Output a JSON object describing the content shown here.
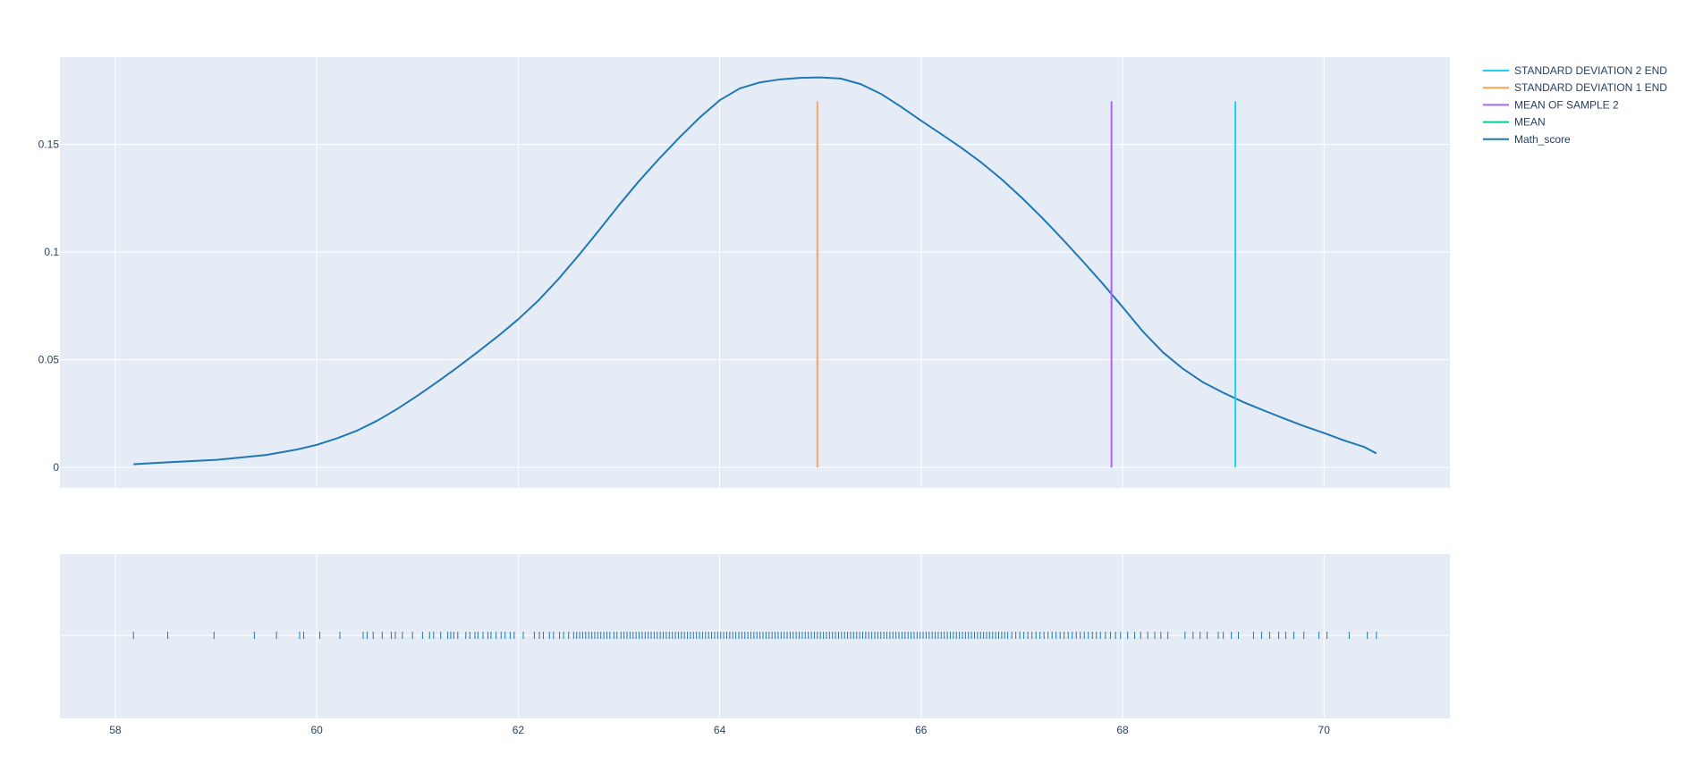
{
  "chart_data": {
    "type": "line",
    "title": "",
    "xlabel": "",
    "ylabel": "",
    "grid": true,
    "legend_position": "top-right",
    "colors": {
      "plot_background": "#e5ecf6",
      "grid": "#ffffff",
      "text": "#2a3f5f"
    },
    "x_axis": {
      "range": [
        57.45,
        71.25
      ],
      "ticks": [
        58,
        60,
        62,
        64,
        66,
        68,
        70
      ],
      "tick_labels": [
        "58",
        "60",
        "62",
        "64",
        "66",
        "68",
        "70"
      ]
    },
    "y_axis": {
      "range": [
        -0.0095,
        0.1905
      ],
      "ticks": [
        0,
        0.05,
        0.1,
        0.15
      ],
      "tick_labels": [
        "0",
        "0.05",
        "0.1",
        "0.15"
      ]
    },
    "legend": [
      {
        "name": "STANDARD DEVIATION 2 END",
        "color": "#19d3f3"
      },
      {
        "name": "STANDARD DEVIATION 1 END",
        "color": "#ffa15a"
      },
      {
        "name": "MEAN OF SAMPLE 2",
        "color": "#ab63fa"
      },
      {
        "name": "MEAN",
        "color": "#00cc96"
      },
      {
        "name": "Math_score",
        "color": "#1f77b4"
      }
    ],
    "series": [
      {
        "name": "Math_score",
        "type": "density",
        "color": "#1f77b4",
        "x": [
          58.18,
          58.5,
          59.0,
          59.5,
          59.8,
          60.0,
          60.2,
          60.4,
          60.6,
          60.8,
          61.0,
          61.2,
          61.4,
          61.6,
          61.8,
          62.0,
          62.2,
          62.4,
          62.6,
          62.8,
          63.0,
          63.2,
          63.4,
          63.6,
          63.8,
          64.0,
          64.2,
          64.4,
          64.6,
          64.8,
          65.0,
          65.2,
          65.4,
          65.6,
          65.8,
          66.0,
          66.2,
          66.4,
          66.6,
          66.8,
          67.0,
          67.2,
          67.4,
          67.6,
          67.8,
          68.0,
          68.2,
          68.4,
          68.6,
          68.8,
          69.0,
          69.2,
          69.4,
          69.6,
          69.8,
          70.0,
          70.2,
          70.4,
          70.52
        ],
        "y": [
          0.0015,
          0.0023,
          0.0035,
          0.0058,
          0.0083,
          0.0105,
          0.0135,
          0.0171,
          0.0217,
          0.0272,
          0.0333,
          0.0398,
          0.0466,
          0.0537,
          0.061,
          0.0688,
          0.0775,
          0.0875,
          0.0985,
          0.11,
          0.1218,
          0.133,
          0.1434,
          0.1532,
          0.1624,
          0.1705,
          0.176,
          0.1788,
          0.1802,
          0.1809,
          0.1811,
          0.1806,
          0.178,
          0.1735,
          0.1675,
          0.161,
          0.1548,
          0.1484,
          0.1415,
          0.1338,
          0.1252,
          0.116,
          0.1062,
          0.096,
          0.0855,
          0.0745,
          0.0632,
          0.0535,
          0.0458,
          0.0395,
          0.0347,
          0.0303,
          0.0265,
          0.0228,
          0.0192,
          0.016,
          0.0125,
          0.0095,
          0.0065
        ]
      },
      {
        "name": "STANDARD DEVIATION 1 END",
        "type": "vline",
        "color": "#ffa15a",
        "x": 64.97,
        "y": [
          0,
          0.17
        ]
      },
      {
        "name": "MEAN OF SAMPLE 2",
        "type": "vline",
        "color": "#ab63fa",
        "x": 67.89,
        "y": [
          0,
          0.17
        ]
      },
      {
        "name": "STANDARD DEVIATION 2 END",
        "type": "vline",
        "color": "#19d3f3",
        "x": 69.12,
        "y": [
          0,
          0.17
        ]
      }
    ],
    "rug": {
      "name": "Math_score",
      "color": "#1f77b4",
      "x": [
        58.18,
        58.52,
        58.98,
        59.38,
        59.6,
        59.83,
        59.87,
        60.03,
        60.23,
        60.46,
        60.5,
        60.56,
        60.65,
        60.74,
        60.78,
        60.85,
        60.95,
        61.05,
        61.12,
        61.16,
        61.23,
        61.3,
        61.33,
        61.36,
        61.4,
        61.48,
        61.52,
        61.57,
        61.6,
        61.65,
        61.7,
        61.73,
        61.78,
        61.83,
        61.87,
        61.92,
        61.96,
        62.05,
        62.16,
        62.21,
        62.25,
        62.31,
        62.35,
        62.41,
        62.45,
        62.5,
        62.55,
        62.58,
        62.61,
        62.64,
        62.67,
        62.7,
        62.73,
        62.76,
        62.79,
        62.82,
        62.85,
        62.88,
        62.91,
        62.95,
        62.98,
        63.02,
        63.05,
        63.08,
        63.11,
        63.14,
        63.17,
        63.2,
        63.23,
        63.26,
        63.29,
        63.32,
        63.35,
        63.38,
        63.41,
        63.44,
        63.47,
        63.5,
        63.53,
        63.56,
        63.59,
        63.62,
        63.65,
        63.68,
        63.71,
        63.74,
        63.77,
        63.8,
        63.83,
        63.86,
        63.89,
        63.92,
        63.95,
        63.98,
        64.01,
        64.04,
        64.07,
        64.1,
        64.13,
        64.16,
        64.19,
        64.22,
        64.25,
        64.28,
        64.31,
        64.34,
        64.37,
        64.4,
        64.43,
        64.46,
        64.49,
        64.52,
        64.55,
        64.58,
        64.61,
        64.64,
        64.67,
        64.7,
        64.73,
        64.76,
        64.79,
        64.82,
        64.85,
        64.88,
        64.91,
        64.94,
        64.97,
        65.0,
        65.03,
        65.06,
        65.09,
        65.12,
        65.15,
        65.18,
        65.21,
        65.24,
        65.27,
        65.3,
        65.33,
        65.36,
        65.39,
        65.42,
        65.45,
        65.48,
        65.51,
        65.54,
        65.57,
        65.6,
        65.63,
        65.66,
        65.69,
        65.72,
        65.75,
        65.78,
        65.81,
        65.84,
        65.87,
        65.9,
        65.93,
        65.96,
        65.99,
        66.02,
        66.05,
        66.08,
        66.11,
        66.14,
        66.17,
        66.2,
        66.23,
        66.26,
        66.29,
        66.32,
        66.35,
        66.38,
        66.41,
        66.44,
        66.47,
        66.5,
        66.53,
        66.56,
        66.59,
        66.62,
        66.65,
        66.68,
        66.71,
        66.74,
        66.77,
        66.8,
        66.83,
        66.86,
        66.9,
        66.94,
        66.98,
        67.02,
        67.06,
        67.1,
        67.14,
        67.18,
        67.22,
        67.26,
        67.3,
        67.34,
        67.38,
        67.42,
        67.46,
        67.5,
        67.54,
        67.58,
        67.62,
        67.66,
        67.7,
        67.74,
        67.78,
        67.83,
        67.88,
        67.93,
        67.98,
        68.05,
        68.12,
        68.18,
        68.25,
        68.32,
        68.38,
        68.45,
        68.62,
        68.7,
        68.77,
        68.84,
        68.95,
        69.0,
        69.08,
        69.15,
        69.3,
        69.38,
        69.46,
        69.55,
        69.62,
        69.7,
        69.8,
        69.95,
        70.03,
        70.25,
        70.43,
        70.52
      ]
    }
  }
}
